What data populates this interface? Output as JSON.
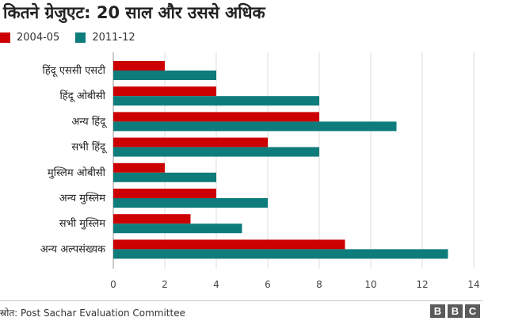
{
  "title": "कितने ग्रेजुएट: 20 साल और उससे अधिक",
  "source_text": "स्रोत: Post Sachar Evaluation Committee",
  "logo": {
    "letters": [
      "B",
      "B",
      "C"
    ]
  },
  "chart_data": {
    "type": "bar",
    "orientation": "horizontal",
    "title": "",
    "xlabel": "",
    "ylabel": "",
    "xlim": [
      0,
      14
    ],
    "ticks": [
      0,
      2,
      4,
      6,
      8,
      10,
      12,
      14
    ],
    "grid": true,
    "legend_position": "top-left",
    "categories": [
      "हिंदू एससी एसटी",
      "हिंदू ओबीसी",
      "अन्य हिंदू",
      "सभी हिंदू",
      "मुस्लिम ओबीसी",
      "अन्य मुस्लिम",
      "सभी मुस्लिम",
      "अन्य अल्पसंख्यक"
    ],
    "series": [
      {
        "name": "2004-05",
        "color": "#cc0000",
        "values": [
          2,
          4,
          8,
          6,
          2,
          4,
          3,
          9
        ]
      },
      {
        "name": "2011-12",
        "color": "#0e7c7b",
        "values": [
          4,
          8,
          11,
          8,
          4,
          6,
          5,
          13
        ]
      }
    ]
  }
}
